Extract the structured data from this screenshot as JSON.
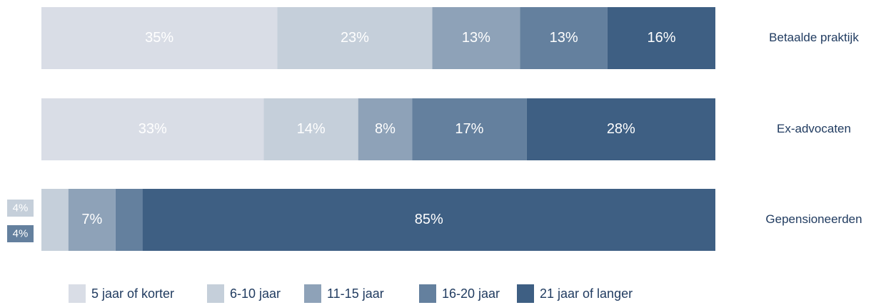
{
  "chart_data": {
    "type": "stacked-bar-horizontal",
    "categories": [
      "Betaalde praktijk",
      "Ex-advocaten",
      "Gepensioneerden"
    ],
    "xlim": [
      0,
      100
    ],
    "series": [
      {
        "name": "5 jaar of korter",
        "color": "#d9dde6",
        "values": [
          35,
          33,
          0
        ],
        "value_labels": [
          "35%",
          "33%",
          null
        ]
      },
      {
        "name": "6-10 jaar",
        "color": "#c5cfda",
        "values": [
          23,
          14,
          4
        ],
        "value_labels": [
          "23%",
          "14%",
          "4%"
        ]
      },
      {
        "name": "11-15 jaar",
        "color": "#8ea2b8",
        "values": [
          13,
          8,
          7
        ],
        "value_labels": [
          "13%",
          "8%",
          "7%"
        ]
      },
      {
        "name": "16-20 jaar",
        "color": "#64809e",
        "values": [
          13,
          17,
          4
        ],
        "value_labels": [
          "13%",
          "17%",
          "4%"
        ]
      },
      {
        "name": "21 jaar of langer",
        "color": "#3e5f83",
        "values": [
          16,
          28,
          85
        ],
        "value_labels": [
          "16%",
          "28%",
          "85%"
        ]
      }
    ]
  }
}
